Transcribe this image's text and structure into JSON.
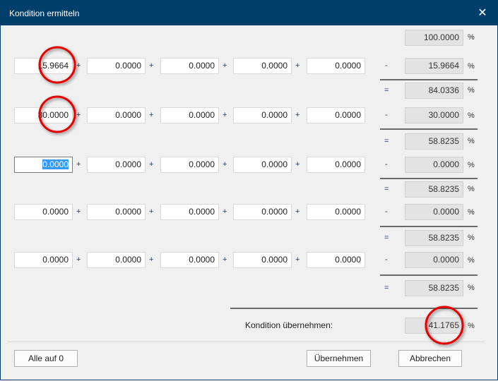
{
  "window": {
    "title": "Kondition ermitteln",
    "close": "✕"
  },
  "base": {
    "value": "100.0000",
    "unit": "%"
  },
  "rows": [
    {
      "inputs": [
        "15.9664",
        "0.0000",
        "0.0000",
        "0.0000",
        "0.0000"
      ],
      "minus": "-",
      "subtract": "15.9664",
      "equals": "=",
      "result": "84.0336"
    },
    {
      "inputs": [
        "30.0000",
        "0.0000",
        "0.0000",
        "0.0000",
        "0.0000"
      ],
      "minus": "-",
      "subtract": "30.0000",
      "equals": "=",
      "result": "58.8235"
    },
    {
      "inputs": [
        "0.0000",
        "0.0000",
        "0.0000",
        "0.0000",
        "0.0000"
      ],
      "minus": "-",
      "subtract": "0.0000",
      "equals": "=",
      "result": "58.8235"
    },
    {
      "inputs": [
        "0.0000",
        "0.0000",
        "0.0000",
        "0.0000",
        "0.0000"
      ],
      "minus": "-",
      "subtract": "0.0000",
      "equals": "=",
      "result": "58.8235"
    },
    {
      "inputs": [
        "0.0000",
        "0.0000",
        "0.0000",
        "0.0000",
        "0.0000"
      ],
      "minus": "-",
      "subtract": "0.0000",
      "equals": "=",
      "result": "58.8235"
    }
  ],
  "plus": "+",
  "unit": "%",
  "kondition": {
    "label": "Kondition übernehmen:",
    "value": "41.1765"
  },
  "buttons": {
    "reset": "Alle auf 0",
    "apply": "Übernehmen",
    "cancel": "Abbrechen"
  },
  "annotation_color": "#e60000"
}
